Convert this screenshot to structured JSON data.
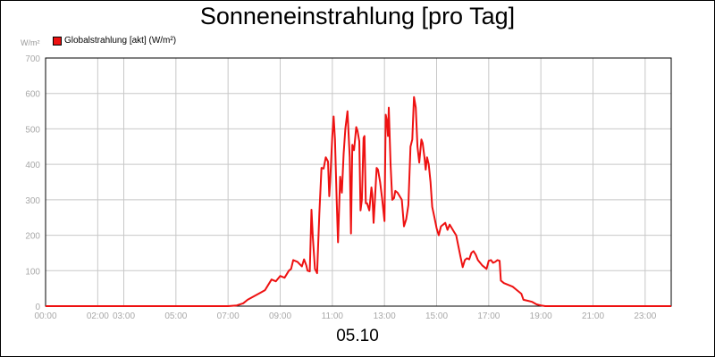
{
  "chart_data": {
    "type": "line",
    "title": "Sonneneinstrahlung [pro Tag]",
    "ylabel": "W/m²",
    "xlabel": "05.10",
    "ylim": [
      0,
      700
    ],
    "y_ticks": [
      "0",
      "100",
      "200",
      "300",
      "400",
      "500",
      "600",
      "700"
    ],
    "x_ticks": [
      {
        "hour": 0,
        "label": "00:00"
      },
      {
        "hour": 2,
        "label": "02:00"
      },
      {
        "hour": 3,
        "label": "03:00"
      },
      {
        "hour": 5,
        "label": "05:00"
      },
      {
        "hour": 7,
        "label": "07:00"
      },
      {
        "hour": 9,
        "label": "09:00"
      },
      {
        "hour": 11,
        "label": "11:00"
      },
      {
        "hour": 13,
        "label": "13:00"
      },
      {
        "hour": 15,
        "label": "15:00"
      },
      {
        "hour": 17,
        "label": "17:00"
      },
      {
        "hour": 19,
        "label": "19:00"
      },
      {
        "hour": 21,
        "label": "21:00"
      },
      {
        "hour": 23,
        "label": "23:00"
      }
    ],
    "grid": true,
    "legend_position": "top-left",
    "series": [
      {
        "name": "Globalstrahlung [akt] (W/m²)",
        "color": "#ee1111",
        "points": [
          [
            "00:00",
            0
          ],
          [
            "07:00",
            0
          ],
          [
            "07:20",
            2
          ],
          [
            "07:35",
            8
          ],
          [
            "07:45",
            18
          ],
          [
            "08:00",
            28
          ],
          [
            "08:15",
            38
          ],
          [
            "08:25",
            45
          ],
          [
            "08:30",
            55
          ],
          [
            "08:40",
            75
          ],
          [
            "08:50",
            70
          ],
          [
            "09:00",
            85
          ],
          [
            "09:10",
            80
          ],
          [
            "09:20",
            100
          ],
          [
            "09:25",
            105
          ],
          [
            "09:30",
            130
          ],
          [
            "09:40",
            125
          ],
          [
            "09:45",
            118
          ],
          [
            "09:50",
            112
          ],
          [
            "09:55",
            132
          ],
          [
            "10:00",
            115
          ],
          [
            "10:03",
            100
          ],
          [
            "10:08",
            98
          ],
          [
            "10:12",
            272
          ],
          [
            "10:15",
            195
          ],
          [
            "10:20",
            105
          ],
          [
            "10:25",
            93
          ],
          [
            "10:30",
            260
          ],
          [
            "10:35",
            390
          ],
          [
            "10:40",
            388
          ],
          [
            "10:45",
            420
          ],
          [
            "10:50",
            408
          ],
          [
            "10:53",
            310
          ],
          [
            "10:55",
            350
          ],
          [
            "11:00",
            480
          ],
          [
            "11:03",
            535
          ],
          [
            "11:06",
            470
          ],
          [
            "11:10",
            300
          ],
          [
            "11:13",
            180
          ],
          [
            "11:18",
            365
          ],
          [
            "11:22",
            320
          ],
          [
            "11:26",
            430
          ],
          [
            "11:30",
            500
          ],
          [
            "11:35",
            550
          ],
          [
            "11:40",
            420
          ],
          [
            "11:43",
            205
          ],
          [
            "11:46",
            455
          ],
          [
            "11:50",
            440
          ],
          [
            "11:55",
            505
          ],
          [
            "11:58",
            495
          ],
          [
            "12:02",
            465
          ],
          [
            "12:05",
            270
          ],
          [
            "12:08",
            300
          ],
          [
            "12:12",
            475
          ],
          [
            "12:14",
            480
          ],
          [
            "12:17",
            290
          ],
          [
            "12:20",
            290
          ],
          [
            "12:25",
            270
          ],
          [
            "12:30",
            335
          ],
          [
            "12:32",
            315
          ],
          [
            "12:35",
            235
          ],
          [
            "12:38",
            300
          ],
          [
            "12:42",
            390
          ],
          [
            "12:45",
            385
          ],
          [
            "12:50",
            350
          ],
          [
            "12:55",
            300
          ],
          [
            "13:00",
            240
          ],
          [
            "13:03",
            540
          ],
          [
            "13:06",
            520
          ],
          [
            "13:08",
            480
          ],
          [
            "13:10",
            560
          ],
          [
            "13:14",
            400
          ],
          [
            "13:18",
            300
          ],
          [
            "13:22",
            305
          ],
          [
            "13:25",
            325
          ],
          [
            "13:30",
            320
          ],
          [
            "13:35",
            310
          ],
          [
            "13:40",
            300
          ],
          [
            "13:45",
            225
          ],
          [
            "13:50",
            245
          ],
          [
            "13:55",
            285
          ],
          [
            "14:00",
            450
          ],
          [
            "14:04",
            470
          ],
          [
            "14:08",
            590
          ],
          [
            "14:12",
            560
          ],
          [
            "14:16",
            450
          ],
          [
            "14:20",
            405
          ],
          [
            "14:25",
            470
          ],
          [
            "14:28",
            460
          ],
          [
            "14:32",
            420
          ],
          [
            "14:35",
            385
          ],
          [
            "14:38",
            420
          ],
          [
            "14:42",
            400
          ],
          [
            "14:46",
            350
          ],
          [
            "14:50",
            280
          ],
          [
            "14:55",
            250
          ],
          [
            "15:00",
            220
          ],
          [
            "15:05",
            200
          ],
          [
            "15:10",
            225
          ],
          [
            "15:15",
            230
          ],
          [
            "15:20",
            235
          ],
          [
            "15:25",
            215
          ],
          [
            "15:30",
            230
          ],
          [
            "15:35",
            220
          ],
          [
            "15:40",
            210
          ],
          [
            "15:45",
            200
          ],
          [
            "15:50",
            170
          ],
          [
            "15:55",
            140
          ],
          [
            "16:00",
            110
          ],
          [
            "16:05",
            130
          ],
          [
            "16:10",
            135
          ],
          [
            "16:15",
            132
          ],
          [
            "16:20",
            150
          ],
          [
            "16:25",
            155
          ],
          [
            "16:30",
            145
          ],
          [
            "16:35",
            130
          ],
          [
            "16:45",
            115
          ],
          [
            "16:55",
            105
          ],
          [
            "17:00",
            128
          ],
          [
            "17:05",
            130
          ],
          [
            "17:10",
            122
          ],
          [
            "17:15",
            125
          ],
          [
            "17:20",
            130
          ],
          [
            "17:25",
            128
          ],
          [
            "17:28",
            72
          ],
          [
            "17:35",
            65
          ],
          [
            "17:45",
            60
          ],
          [
            "17:55",
            55
          ],
          [
            "18:05",
            45
          ],
          [
            "18:15",
            35
          ],
          [
            "18:20",
            18
          ],
          [
            "18:30",
            15
          ],
          [
            "18:40",
            12
          ],
          [
            "18:50",
            5
          ],
          [
            "19:00",
            2
          ],
          [
            "19:10",
            0
          ],
          [
            "24:00",
            0
          ]
        ]
      }
    ]
  }
}
